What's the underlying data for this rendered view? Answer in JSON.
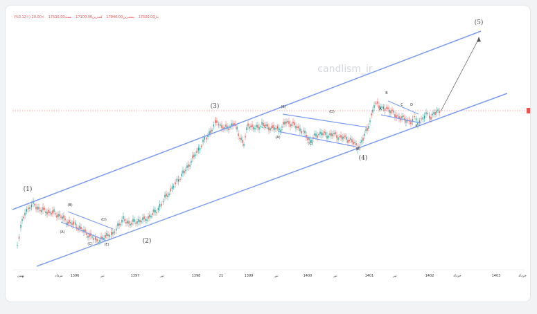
{
  "header": {
    "values": [
      "باز17500.00",
      "بیشترین17940.00",
      "کمترین17100.00",
      "بسته17520.00",
      "+20.00 (+0.12%)"
    ]
  },
  "watermark": "candlism_ir",
  "price_marker_color": "#ef5350",
  "chart_data": {
    "type": "candlestick",
    "x_tick_labels": [
      "بهمن",
      "مرداد",
      "1396",
      "تیر",
      "1397",
      "تیر",
      "1398",
      "21",
      "1399",
      "تیر",
      "1400",
      "تیر",
      "1401",
      "تیر",
      "1402",
      "خرداد",
      "1403",
      "خرداد"
    ],
    "wave_labels": [
      "(1)",
      "(2)",
      "(3)",
      "(4)",
      "(5)"
    ],
    "sub_wave_labels": [
      "(A)",
      "(B)",
      "(C)",
      "(D)",
      "(E)",
      "(A)",
      "(B)",
      "(C)",
      "(D)",
      "(E)",
      "A",
      "B",
      "C",
      "D",
      "E"
    ],
    "colors": {
      "up": "#26a69a",
      "down": "#ef5350",
      "channel": "#7b9cf0",
      "dotted": "#ef5350"
    }
  }
}
